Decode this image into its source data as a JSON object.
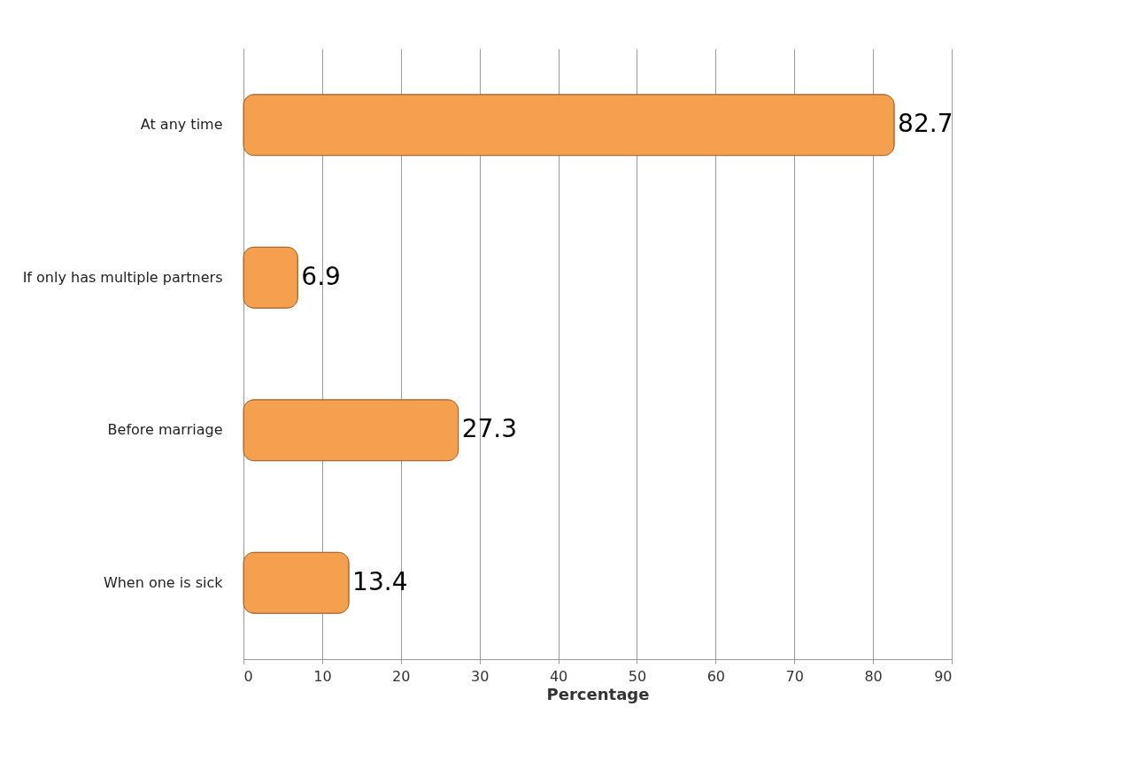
{
  "chart_data": {
    "type": "bar",
    "orientation": "horizontal",
    "categories": [
      "At any time",
      "If only has multiple partners",
      "Before marriage",
      "When one is sick"
    ],
    "values": [
      82.7,
      6.9,
      27.3,
      13.4
    ],
    "color": "#f5a04f",
    "xlabel": "Percentage",
    "xlim": [
      0,
      90
    ],
    "xticks": [
      0,
      10,
      20,
      30,
      40,
      50,
      60,
      70,
      80,
      90
    ],
    "grid": "x",
    "data_labels": true
  }
}
